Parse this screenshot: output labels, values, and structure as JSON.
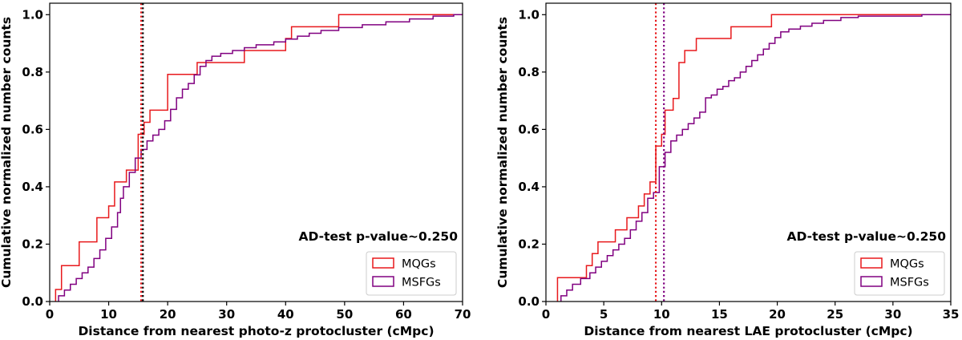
{
  "chart_data": [
    {
      "type": "line",
      "step": true,
      "xlabel": "Distance from nearest photo-z protocluster (cMpc)",
      "ylabel": "Cumulative normalized number counts",
      "xlim": [
        0,
        70
      ],
      "ylim": [
        0,
        1.04
      ],
      "xticks": [
        0,
        10,
        20,
        30,
        40,
        50,
        60,
        70
      ],
      "yticks": [
        0.0,
        0.2,
        0.4,
        0.6,
        0.8,
        1.0
      ],
      "annotation": "AD-test p-value~0.250",
      "legend": "lower-right",
      "series": [
        {
          "name": "MQGs",
          "color": "#e8191c",
          "points": [
            [
              1.0,
              0.0
            ],
            [
              1.0,
              0.042
            ],
            [
              2.0,
              0.042
            ],
            [
              2.0,
              0.125
            ],
            [
              5.0,
              0.125
            ],
            [
              5.0,
              0.208
            ],
            [
              8.0,
              0.208
            ],
            [
              8.0,
              0.292
            ],
            [
              10.0,
              0.292
            ],
            [
              10.0,
              0.333
            ],
            [
              11.0,
              0.333
            ],
            [
              11.0,
              0.417
            ],
            [
              13.0,
              0.417
            ],
            [
              13.0,
              0.458
            ],
            [
              15.0,
              0.458
            ],
            [
              15.0,
              0.583
            ],
            [
              16.0,
              0.583
            ],
            [
              16.0,
              0.625
            ],
            [
              17.0,
              0.625
            ],
            [
              17.0,
              0.667
            ],
            [
              20.0,
              0.667
            ],
            [
              20.0,
              0.792
            ],
            [
              25.0,
              0.792
            ],
            [
              25.0,
              0.833
            ],
            [
              33.0,
              0.833
            ],
            [
              33.0,
              0.875
            ],
            [
              40.0,
              0.875
            ],
            [
              40.0,
              0.917
            ],
            [
              41.0,
              0.917
            ],
            [
              41.0,
              0.958
            ],
            [
              49.0,
              0.958
            ],
            [
              49.0,
              1.0
            ],
            [
              70.0,
              1.0
            ]
          ]
        },
        {
          "name": "MSFGs",
          "color": "#800080",
          "points": [
            [
              1.5,
              0.0
            ],
            [
              1.5,
              0.02
            ],
            [
              2.5,
              0.02
            ],
            [
              2.5,
              0.04
            ],
            [
              3.5,
              0.04
            ],
            [
              3.5,
              0.06
            ],
            [
              4.5,
              0.06
            ],
            [
              4.5,
              0.08
            ],
            [
              5.5,
              0.08
            ],
            [
              5.5,
              0.1
            ],
            [
              6.5,
              0.1
            ],
            [
              6.5,
              0.12
            ],
            [
              7.5,
              0.12
            ],
            [
              7.5,
              0.15
            ],
            [
              8.5,
              0.15
            ],
            [
              8.5,
              0.18
            ],
            [
              9.5,
              0.18
            ],
            [
              9.5,
              0.22
            ],
            [
              10.5,
              0.22
            ],
            [
              10.5,
              0.26
            ],
            [
              11.5,
              0.26
            ],
            [
              11.5,
              0.31
            ],
            [
              12.0,
              0.31
            ],
            [
              12.0,
              0.36
            ],
            [
              12.5,
              0.36
            ],
            [
              12.5,
              0.4
            ],
            [
              13.5,
              0.4
            ],
            [
              13.5,
              0.45
            ],
            [
              14.5,
              0.45
            ],
            [
              14.5,
              0.5
            ],
            [
              15.5,
              0.5
            ],
            [
              15.5,
              0.53
            ],
            [
              16.5,
              0.53
            ],
            [
              16.5,
              0.56
            ],
            [
              17.5,
              0.56
            ],
            [
              17.5,
              0.58
            ],
            [
              18.5,
              0.58
            ],
            [
              18.5,
              0.6
            ],
            [
              19.5,
              0.6
            ],
            [
              19.5,
              0.63
            ],
            [
              20.5,
              0.63
            ],
            [
              20.5,
              0.67
            ],
            [
              21.5,
              0.67
            ],
            [
              21.5,
              0.71
            ],
            [
              22.5,
              0.71
            ],
            [
              22.5,
              0.74
            ],
            [
              23.5,
              0.74
            ],
            [
              23.5,
              0.76
            ],
            [
              24.5,
              0.76
            ],
            [
              24.5,
              0.79
            ],
            [
              25.5,
              0.79
            ],
            [
              25.5,
              0.82
            ],
            [
              26.5,
              0.82
            ],
            [
              26.5,
              0.84
            ],
            [
              27.5,
              0.84
            ],
            [
              27.5,
              0.855
            ],
            [
              29.0,
              0.855
            ],
            [
              29.0,
              0.865
            ],
            [
              31.0,
              0.865
            ],
            [
              31.0,
              0.875
            ],
            [
              33.0,
              0.875
            ],
            [
              33.0,
              0.885
            ],
            [
              35.0,
              0.885
            ],
            [
              35.0,
              0.895
            ],
            [
              38.0,
              0.895
            ],
            [
              38.0,
              0.905
            ],
            [
              40.0,
              0.905
            ],
            [
              40.0,
              0.915
            ],
            [
              42.0,
              0.915
            ],
            [
              42.0,
              0.925
            ],
            [
              44.0,
              0.925
            ],
            [
              44.0,
              0.935
            ],
            [
              46.0,
              0.935
            ],
            [
              46.0,
              0.945
            ],
            [
              49.0,
              0.945
            ],
            [
              49.0,
              0.955
            ],
            [
              53.0,
              0.955
            ],
            [
              53.0,
              0.965
            ],
            [
              57.0,
              0.965
            ],
            [
              57.0,
              0.975
            ],
            [
              61.0,
              0.975
            ],
            [
              61.0,
              0.985
            ],
            [
              65.0,
              0.985
            ],
            [
              65.0,
              0.995
            ],
            [
              68.5,
              0.995
            ],
            [
              68.5,
              1.0
            ],
            [
              70.0,
              1.0
            ]
          ]
        }
      ],
      "vlines": [
        {
          "x": 15.5,
          "color": "#e8191c",
          "dash": true
        },
        {
          "x": 15.8,
          "color": "#000000",
          "dash": true
        }
      ]
    },
    {
      "type": "line",
      "step": true,
      "xlabel": "Distance from nearest LAE protocluster (cMpc)",
      "ylabel": "Cumulative normalized number counts",
      "xlim": [
        0,
        35
      ],
      "ylim": [
        0,
        1.04
      ],
      "xticks": [
        0,
        5,
        10,
        15,
        20,
        25,
        30,
        35
      ],
      "yticks": [
        0.0,
        0.2,
        0.4,
        0.6,
        0.8,
        1.0
      ],
      "annotation": "AD-test p-value~0.250",
      "legend": "lower-right",
      "series": [
        {
          "name": "MQGs",
          "color": "#e8191c",
          "points": [
            [
              1.0,
              0.0
            ],
            [
              1.0,
              0.083
            ],
            [
              3.5,
              0.083
            ],
            [
              3.5,
              0.125
            ],
            [
              4.0,
              0.125
            ],
            [
              4.0,
              0.167
            ],
            [
              4.5,
              0.167
            ],
            [
              4.5,
              0.208
            ],
            [
              6.0,
              0.208
            ],
            [
              6.0,
              0.25
            ],
            [
              7.0,
              0.25
            ],
            [
              7.0,
              0.292
            ],
            [
              8.0,
              0.292
            ],
            [
              8.0,
              0.333
            ],
            [
              8.5,
              0.333
            ],
            [
              8.5,
              0.375
            ],
            [
              9.0,
              0.375
            ],
            [
              9.0,
              0.417
            ],
            [
              9.5,
              0.417
            ],
            [
              9.5,
              0.542
            ],
            [
              10.0,
              0.542
            ],
            [
              10.0,
              0.583
            ],
            [
              10.3,
              0.583
            ],
            [
              10.3,
              0.667
            ],
            [
              11.0,
              0.667
            ],
            [
              11.0,
              0.708
            ],
            [
              11.5,
              0.708
            ],
            [
              11.5,
              0.833
            ],
            [
              12.0,
              0.833
            ],
            [
              12.0,
              0.875
            ],
            [
              13.0,
              0.875
            ],
            [
              13.0,
              0.917
            ],
            [
              16.0,
              0.917
            ],
            [
              16.0,
              0.958
            ],
            [
              19.5,
              0.958
            ],
            [
              19.5,
              1.0
            ],
            [
              35.0,
              1.0
            ]
          ]
        },
        {
          "name": "MSFGs",
          "color": "#800080",
          "points": [
            [
              1.3,
              0.0
            ],
            [
              1.3,
              0.02
            ],
            [
              1.8,
              0.02
            ],
            [
              1.8,
              0.04
            ],
            [
              2.3,
              0.04
            ],
            [
              2.3,
              0.06
            ],
            [
              3.0,
              0.06
            ],
            [
              3.0,
              0.08
            ],
            [
              3.8,
              0.08
            ],
            [
              3.8,
              0.1
            ],
            [
              4.3,
              0.1
            ],
            [
              4.3,
              0.12
            ],
            [
              4.8,
              0.12
            ],
            [
              4.8,
              0.14
            ],
            [
              5.3,
              0.14
            ],
            [
              5.3,
              0.16
            ],
            [
              5.8,
              0.16
            ],
            [
              5.8,
              0.18
            ],
            [
              6.3,
              0.18
            ],
            [
              6.3,
              0.2
            ],
            [
              6.8,
              0.2
            ],
            [
              6.8,
              0.22
            ],
            [
              7.3,
              0.22
            ],
            [
              7.3,
              0.25
            ],
            [
              7.8,
              0.25
            ],
            [
              7.8,
              0.28
            ],
            [
              8.3,
              0.28
            ],
            [
              8.3,
              0.31
            ],
            [
              8.8,
              0.31
            ],
            [
              8.8,
              0.36
            ],
            [
              9.3,
              0.36
            ],
            [
              9.3,
              0.38
            ],
            [
              9.8,
              0.38
            ],
            [
              9.8,
              0.47
            ],
            [
              10.3,
              0.47
            ],
            [
              10.3,
              0.52
            ],
            [
              10.8,
              0.52
            ],
            [
              10.8,
              0.56
            ],
            [
              11.3,
              0.56
            ],
            [
              11.3,
              0.58
            ],
            [
              11.8,
              0.58
            ],
            [
              11.8,
              0.6
            ],
            [
              12.3,
              0.6
            ],
            [
              12.3,
              0.62
            ],
            [
              12.8,
              0.62
            ],
            [
              12.8,
              0.64
            ],
            [
              13.3,
              0.64
            ],
            [
              13.3,
              0.66
            ],
            [
              13.8,
              0.66
            ],
            [
              13.8,
              0.71
            ],
            [
              14.3,
              0.71
            ],
            [
              14.3,
              0.72
            ],
            [
              14.8,
              0.72
            ],
            [
              14.8,
              0.74
            ],
            [
              15.3,
              0.74
            ],
            [
              15.3,
              0.75
            ],
            [
              15.8,
              0.75
            ],
            [
              15.8,
              0.77
            ],
            [
              16.3,
              0.77
            ],
            [
              16.3,
              0.78
            ],
            [
              16.8,
              0.78
            ],
            [
              16.8,
              0.8
            ],
            [
              17.3,
              0.8
            ],
            [
              17.3,
              0.82
            ],
            [
              17.8,
              0.82
            ],
            [
              17.8,
              0.84
            ],
            [
              18.3,
              0.84
            ],
            [
              18.3,
              0.86
            ],
            [
              18.8,
              0.86
            ],
            [
              18.8,
              0.88
            ],
            [
              19.3,
              0.88
            ],
            [
              19.3,
              0.9
            ],
            [
              19.8,
              0.9
            ],
            [
              19.8,
              0.92
            ],
            [
              20.3,
              0.92
            ],
            [
              20.3,
              0.94
            ],
            [
              21.0,
              0.94
            ],
            [
              21.0,
              0.95
            ],
            [
              22.0,
              0.95
            ],
            [
              22.0,
              0.96
            ],
            [
              23.0,
              0.96
            ],
            [
              23.0,
              0.97
            ],
            [
              24.0,
              0.97
            ],
            [
              24.0,
              0.98
            ],
            [
              25.5,
              0.98
            ],
            [
              25.5,
              0.99
            ],
            [
              27.0,
              0.99
            ],
            [
              27.0,
              0.995
            ],
            [
              32.5,
              0.995
            ],
            [
              32.5,
              1.0
            ],
            [
              35.0,
              1.0
            ]
          ]
        }
      ],
      "vlines": [
        {
          "x": 9.5,
          "color": "#e8191c",
          "dash": true
        },
        {
          "x": 10.2,
          "color": "#800080",
          "dash": true
        }
      ]
    }
  ]
}
